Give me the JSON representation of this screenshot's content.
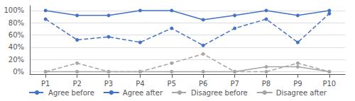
{
  "chart_data": {
    "type": "line",
    "categories": [
      "P1",
      "P2",
      "P3",
      "P4",
      "P5",
      "P6",
      "P7",
      "P8",
      "P9",
      "P10"
    ],
    "series": [
      {
        "name": "Agree before",
        "color": "#4472C4",
        "line_style": "dashed",
        "marker": "circle",
        "values": [
          86,
          52,
          57,
          48,
          71,
          43,
          71,
          86,
          48,
          95
        ]
      },
      {
        "name": "Agree after",
        "color": "#4472C4",
        "line_style": "solid",
        "marker": "circle",
        "values": [
          100,
          92,
          92,
          100,
          100,
          85,
          92,
          100,
          92,
          100
        ]
      },
      {
        "name": "Disagree before",
        "color": "#A6A6A6",
        "line_style": "dashed",
        "marker": "circle",
        "values": [
          0,
          14,
          0,
          0,
          14,
          29,
          0,
          0,
          14,
          0
        ]
      },
      {
        "name": "Disagree after",
        "color": "#A6A6A6",
        "line_style": "solid",
        "marker": "circle",
        "values": [
          0,
          0,
          0,
          0,
          0,
          0,
          0,
          8,
          8,
          0
        ]
      }
    ],
    "ylim": [
      -4,
      108
    ],
    "yticks": [
      {
        "value": 0,
        "label": "0%"
      },
      {
        "value": 20,
        "label": "20%"
      },
      {
        "value": 40,
        "label": "40%"
      },
      {
        "value": 60,
        "label": "60%"
      },
      {
        "value": 80,
        "label": "80%"
      },
      {
        "value": 100,
        "label": "100%"
      }
    ],
    "grid": true,
    "legend": "bottom"
  }
}
